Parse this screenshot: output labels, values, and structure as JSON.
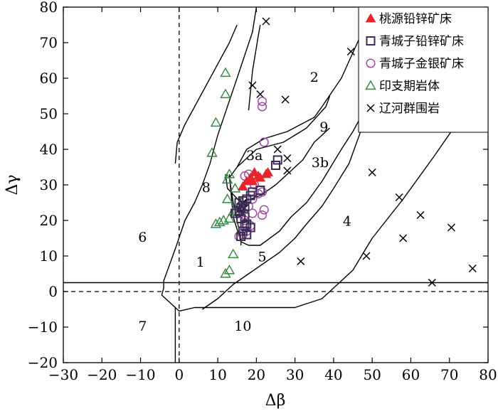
{
  "chart_data": {
    "type": "scatter",
    "title": "",
    "xlabel": "Δβ",
    "ylabel": "Δγ",
    "xlim": [
      -30,
      80
    ],
    "ylim": [
      -20,
      80
    ],
    "xticks": [
      -30,
      -20,
      -10,
      0,
      10,
      20,
      30,
      40,
      50,
      60,
      70,
      80
    ],
    "yticks": [
      -20,
      -10,
      0,
      10,
      20,
      30,
      40,
      50,
      60,
      70,
      80
    ],
    "xtick_labels": [
      "−30",
      "−20",
      "−10",
      "0",
      "10",
      "20",
      "30",
      "40",
      "50",
      "60",
      "70",
      "80"
    ],
    "ytick_labels": [
      "−20",
      "−10",
      "0",
      "10",
      "20",
      "30",
      "40",
      "50",
      "60",
      "70",
      "80"
    ],
    "grid": false,
    "legend_position": "top-right",
    "series": [
      {
        "name": "桃源铅锌矿床",
        "marker": "filled-triangle",
        "color": "#e8252a",
        "points": [
          [
            16.5,
            29.5
          ],
          [
            17.5,
            31
          ],
          [
            18.5,
            32
          ],
          [
            19.5,
            33.5
          ],
          [
            19,
            31
          ],
          [
            20.5,
            32.5
          ],
          [
            22.5,
            33
          ],
          [
            23,
            33.5
          ],
          [
            21,
            32
          ]
        ]
      },
      {
        "name": "青城子铅锌矿床",
        "marker": "open-square",
        "color": "#3d2b57",
        "points": [
          [
            25.5,
            37
          ],
          [
            25,
            35.5
          ],
          [
            21,
            28.5
          ],
          [
            19,
            28
          ],
          [
            18.5,
            27
          ],
          [
            17.5,
            26
          ],
          [
            16.5,
            25.5
          ],
          [
            15.5,
            25
          ],
          [
            16,
            23.5
          ],
          [
            17,
            24
          ],
          [
            15.5,
            22.5
          ],
          [
            14.5,
            22
          ],
          [
            17,
            21
          ],
          [
            16,
            20.5
          ],
          [
            17.5,
            19
          ],
          [
            17,
            18.5
          ],
          [
            18.5,
            18
          ],
          [
            16.5,
            17
          ],
          [
            17.5,
            16
          ],
          [
            16,
            15.5
          ]
        ]
      },
      {
        "name": "青城子金银矿床",
        "marker": "open-circle",
        "color": "#a040a0",
        "points": [
          [
            21.5,
            53.5
          ],
          [
            21.5,
            52
          ],
          [
            22,
            42
          ],
          [
            18,
            33
          ],
          [
            17,
            32.5
          ],
          [
            19.5,
            30
          ],
          [
            21.5,
            28
          ],
          [
            20.5,
            27.5
          ],
          [
            19,
            26
          ],
          [
            18,
            24
          ],
          [
            19,
            22
          ],
          [
            17,
            21.5
          ],
          [
            22,
            23
          ],
          [
            21.5,
            21.5
          ],
          [
            17,
            20
          ],
          [
            18.5,
            18.5
          ],
          [
            17.5,
            17
          ],
          [
            16.5,
            16
          ],
          [
            15.5,
            15.5
          ]
        ]
      },
      {
        "name": "印支期岩体",
        "marker": "open-triangle",
        "color": "#2f8a3c",
        "points": [
          [
            12,
            61.5
          ],
          [
            12,
            55.5
          ],
          [
            9.5,
            47.5
          ],
          [
            8.5,
            39
          ],
          [
            13,
            33
          ],
          [
            12.5,
            31.5
          ],
          [
            14.5,
            29
          ],
          [
            12.5,
            26
          ],
          [
            14,
            22.5
          ],
          [
            13,
            20.5
          ],
          [
            11.5,
            20
          ],
          [
            10.5,
            19.5
          ],
          [
            9.5,
            19
          ],
          [
            14,
            10.5
          ],
          [
            13,
            6
          ],
          [
            12,
            5
          ]
        ]
      },
      {
        "name": "辽河群围岩",
        "marker": "x",
        "color": "#000000",
        "points": [
          [
            22.5,
            76
          ],
          [
            44.5,
            67.5
          ],
          [
            19,
            58
          ],
          [
            27.5,
            54
          ],
          [
            21,
            55.5
          ],
          [
            25.5,
            40
          ],
          [
            28,
            37.5
          ],
          [
            28,
            34
          ],
          [
            50,
            33.5
          ],
          [
            57,
            26.5
          ],
          [
            62.5,
            21.5
          ],
          [
            70.5,
            18
          ],
          [
            58,
            15
          ],
          [
            48.5,
            10
          ],
          [
            31.5,
            8.5
          ],
          [
            76,
            6.5
          ],
          [
            65.5,
            2.5
          ],
          [
            16.5,
            25
          ],
          [
            16,
            24
          ],
          [
            17,
            23.5
          ],
          [
            15.5,
            23
          ],
          [
            16.5,
            22
          ]
        ]
      }
    ],
    "region_labels": [
      {
        "text": "1",
        "x": 5.5,
        "y": 8
      },
      {
        "text": "2",
        "x": 35,
        "y": 60
      },
      {
        "text": "3a",
        "x": 19.5,
        "y": 38
      },
      {
        "text": "3b",
        "x": 36.5,
        "y": 36
      },
      {
        "text": "4",
        "x": 43.5,
        "y": 19.5
      },
      {
        "text": "5",
        "x": 21.5,
        "y": 9.5
      },
      {
        "text": "6",
        "x": -9.5,
        "y": 15
      },
      {
        "text": "7",
        "x": -9.5,
        "y": -10
      },
      {
        "text": "8",
        "x": 7,
        "y": 29
      },
      {
        "text": "9",
        "x": 37.5,
        "y": 46
      },
      {
        "text": "10",
        "x": 16.5,
        "y": -10
      }
    ]
  }
}
